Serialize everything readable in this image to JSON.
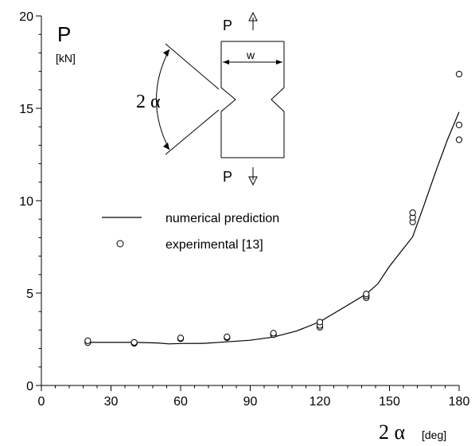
{
  "chart_data": {
    "type": "line",
    "ylabel": "P",
    "ylabel_unit": "[kN]",
    "xlabel": "2 α",
    "xlabel_unit": "[deg]",
    "xlim": [
      0,
      180
    ],
    "ylim": [
      0,
      20
    ],
    "x_ticks": [
      0,
      30,
      60,
      90,
      120,
      150,
      180
    ],
    "y_ticks": [
      0,
      5,
      10,
      15,
      20
    ],
    "grid": false,
    "legend_position": "middle-left",
    "series": [
      {
        "name": "numerical prediction",
        "style": "line",
        "points": [
          [
            20,
            2.33
          ],
          [
            40,
            2.33
          ],
          [
            50,
            2.3
          ],
          [
            55,
            2.25
          ],
          [
            60,
            2.27
          ],
          [
            70,
            2.28
          ],
          [
            80,
            2.36
          ],
          [
            90,
            2.45
          ],
          [
            100,
            2.62
          ],
          [
            110,
            2.95
          ],
          [
            120,
            3.45
          ],
          [
            130,
            4.2
          ],
          [
            140,
            4.95
          ],
          [
            145,
            5.5
          ],
          [
            150,
            6.45
          ],
          [
            155,
            7.25
          ],
          [
            160,
            8.05
          ],
          [
            165,
            9.8
          ],
          [
            170,
            11.6
          ],
          [
            175,
            13.3
          ],
          [
            180,
            14.8
          ]
        ]
      },
      {
        "name": "experimental [13]",
        "style": "open-circle",
        "points": [
          [
            20,
            2.32
          ],
          [
            20,
            2.42
          ],
          [
            40,
            2.28
          ],
          [
            40,
            2.33
          ],
          [
            60,
            2.53
          ],
          [
            60,
            2.57
          ],
          [
            80,
            2.58
          ],
          [
            80,
            2.63
          ],
          [
            100,
            2.75
          ],
          [
            100,
            2.83
          ],
          [
            120,
            3.15
          ],
          [
            120,
            3.25
          ],
          [
            120,
            3.43
          ],
          [
            140,
            4.75
          ],
          [
            140,
            4.85
          ],
          [
            140,
            4.95
          ],
          [
            160,
            8.85
          ],
          [
            160,
            9.1
          ],
          [
            160,
            9.35
          ],
          [
            180,
            13.3
          ],
          [
            180,
            14.1
          ],
          [
            180,
            16.85
          ]
        ]
      }
    ],
    "inset": {
      "load_top": "P",
      "load_bottom": "P",
      "width_label": "w",
      "angle_label": "2 α"
    }
  }
}
